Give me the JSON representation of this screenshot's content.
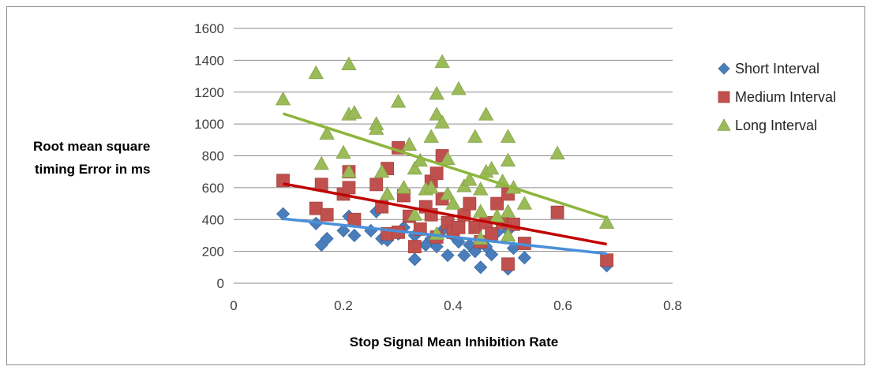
{
  "chart_data": {
    "type": "scatter",
    "title": "",
    "xlabel": "Stop Signal Mean Inhibition Rate",
    "ylabel_lines": [
      "Root mean square",
      "timing Error in ms"
    ],
    "xlim": [
      0,
      0.8
    ],
    "ylim": [
      0,
      1600
    ],
    "x_ticks": [
      0,
      0.2,
      0.4,
      0.6,
      0.8
    ],
    "x_tick_labels": [
      "0",
      "0.2",
      "0.4",
      "0.6",
      "0.8"
    ],
    "y_ticks": [
      0,
      200,
      400,
      600,
      800,
      1000,
      1200,
      1400,
      1600
    ],
    "y_tick_labels": [
      "0",
      "200",
      "400",
      "600",
      "800",
      "1000",
      "1200",
      "1400",
      "1600"
    ],
    "grid": "horizontal",
    "legend_position": "right",
    "series": [
      {
        "name": "Short Interval",
        "marker": "diamond",
        "color": "#4a7ebb",
        "trendline": {
          "color": "#4a90d9",
          "from": [
            0.09,
            405
          ],
          "to": [
            0.68,
            185
          ]
        },
        "points": [
          [
            0.09,
            435
          ],
          [
            0.15,
            375
          ],
          [
            0.16,
            240
          ],
          [
            0.17,
            280
          ],
          [
            0.2,
            330
          ],
          [
            0.21,
            420
          ],
          [
            0.22,
            300
          ],
          [
            0.25,
            330
          ],
          [
            0.26,
            450
          ],
          [
            0.27,
            280
          ],
          [
            0.28,
            270
          ],
          [
            0.3,
            310
          ],
          [
            0.31,
            350
          ],
          [
            0.33,
            150
          ],
          [
            0.33,
            300
          ],
          [
            0.35,
            240
          ],
          [
            0.36,
            280
          ],
          [
            0.37,
            230
          ],
          [
            0.38,
            330
          ],
          [
            0.39,
            175
          ],
          [
            0.4,
            300
          ],
          [
            0.41,
            260
          ],
          [
            0.42,
            175
          ],
          [
            0.43,
            240
          ],
          [
            0.44,
            200
          ],
          [
            0.45,
            100
          ],
          [
            0.45,
            250
          ],
          [
            0.46,
            230
          ],
          [
            0.47,
            180
          ],
          [
            0.48,
            320
          ],
          [
            0.5,
            90
          ],
          [
            0.5,
            330
          ],
          [
            0.51,
            220
          ],
          [
            0.53,
            160
          ],
          [
            0.68,
            110
          ]
        ]
      },
      {
        "name": "Medium Interval",
        "marker": "square",
        "color": "#c0504d",
        "trendline": {
          "color": "#c00000",
          "from": [
            0.09,
            625
          ],
          "to": [
            0.68,
            245
          ]
        },
        "points": [
          [
            0.09,
            645
          ],
          [
            0.15,
            470
          ],
          [
            0.16,
            620
          ],
          [
            0.17,
            430
          ],
          [
            0.2,
            560
          ],
          [
            0.21,
            700
          ],
          [
            0.21,
            600
          ],
          [
            0.22,
            400
          ],
          [
            0.26,
            620
          ],
          [
            0.27,
            480
          ],
          [
            0.28,
            720
          ],
          [
            0.28,
            310
          ],
          [
            0.3,
            850
          ],
          [
            0.3,
            320
          ],
          [
            0.31,
            550
          ],
          [
            0.32,
            420
          ],
          [
            0.33,
            230
          ],
          [
            0.34,
            340
          ],
          [
            0.35,
            480
          ],
          [
            0.36,
            640
          ],
          [
            0.36,
            430
          ],
          [
            0.37,
            690
          ],
          [
            0.37,
            290
          ],
          [
            0.38,
            800
          ],
          [
            0.38,
            530
          ],
          [
            0.39,
            380
          ],
          [
            0.4,
            320
          ],
          [
            0.41,
            350
          ],
          [
            0.42,
            430
          ],
          [
            0.43,
            500
          ],
          [
            0.44,
            350
          ],
          [
            0.45,
            260
          ],
          [
            0.46,
            380
          ],
          [
            0.47,
            310
          ],
          [
            0.48,
            500
          ],
          [
            0.49,
            380
          ],
          [
            0.5,
            120
          ],
          [
            0.5,
            560
          ],
          [
            0.51,
            370
          ],
          [
            0.53,
            250
          ],
          [
            0.59,
            445
          ],
          [
            0.68,
            145
          ]
        ]
      },
      {
        "name": "Long Interval",
        "marker": "triangle",
        "color": "#9bbb59",
        "trendline": {
          "color": "#8db63c",
          "from": [
            0.09,
            1065
          ],
          "to": [
            0.68,
            410
          ]
        },
        "points": [
          [
            0.09,
            1155
          ],
          [
            0.15,
            1320
          ],
          [
            0.16,
            750
          ],
          [
            0.17,
            940
          ],
          [
            0.2,
            820
          ],
          [
            0.21,
            1375
          ],
          [
            0.21,
            1060
          ],
          [
            0.21,
            700
          ],
          [
            0.22,
            1070
          ],
          [
            0.26,
            1000
          ],
          [
            0.26,
            970
          ],
          [
            0.27,
            700
          ],
          [
            0.28,
            560
          ],
          [
            0.3,
            1140
          ],
          [
            0.31,
            600
          ],
          [
            0.32,
            870
          ],
          [
            0.33,
            720
          ],
          [
            0.33,
            430
          ],
          [
            0.34,
            770
          ],
          [
            0.35,
            590
          ],
          [
            0.36,
            920
          ],
          [
            0.36,
            600
          ],
          [
            0.37,
            1190
          ],
          [
            0.37,
            1060
          ],
          [
            0.37,
            310
          ],
          [
            0.38,
            1390
          ],
          [
            0.38,
            1010
          ],
          [
            0.39,
            560
          ],
          [
            0.39,
            780
          ],
          [
            0.4,
            500
          ],
          [
            0.41,
            1220
          ],
          [
            0.42,
            610
          ],
          [
            0.43,
            650
          ],
          [
            0.44,
            920
          ],
          [
            0.45,
            590
          ],
          [
            0.45,
            450
          ],
          [
            0.45,
            280
          ],
          [
            0.46,
            700
          ],
          [
            0.46,
            1060
          ],
          [
            0.47,
            720
          ],
          [
            0.48,
            420
          ],
          [
            0.49,
            640
          ],
          [
            0.5,
            920
          ],
          [
            0.5,
            770
          ],
          [
            0.5,
            450
          ],
          [
            0.5,
            300
          ],
          [
            0.51,
            600
          ],
          [
            0.53,
            500
          ],
          [
            0.59,
            815
          ],
          [
            0.68,
            380
          ]
        ]
      }
    ]
  }
}
